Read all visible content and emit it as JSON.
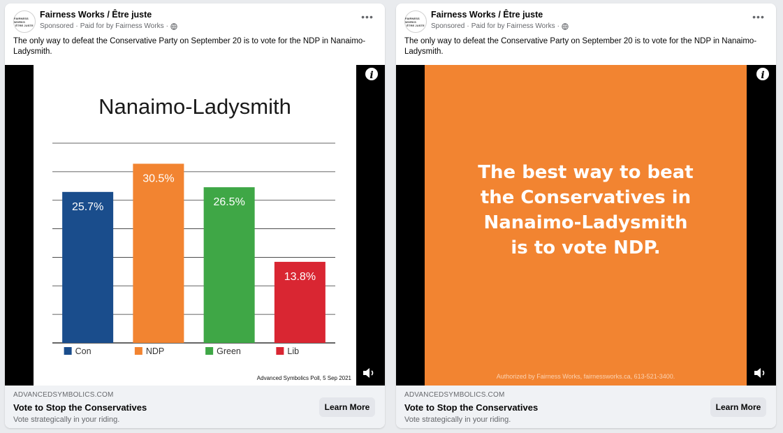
{
  "posts": [
    {
      "page_name": "Fairness Works / Être juste",
      "sponsored": "Sponsored",
      "paid_for": "Paid for by Fairness Works",
      "avatar_text": [
        "FAIRNESS WORKS",
        "ÊTRE JUSTE"
      ],
      "text": "The only way to defeat the Conservative Party on September 20 is to vote for the NDP in Nanaimo-Ladysmith.",
      "info_icon": "info-icon",
      "more_icon": "more-horizontal-icon",
      "audio_icon": "speaker-icon",
      "domain": "ADVANCEDSYMBOLICS.COM",
      "headline": "Vote to Stop the Conservatives",
      "description": "Vote strategically in your riding.",
      "cta": "Learn More"
    },
    {
      "page_name": "Fairness Works / Être juste",
      "sponsored": "Sponsored",
      "paid_for": "Paid for by Fairness Works",
      "avatar_text": [
        "FAIRNESS WORKS",
        "ÊTRE JUSTE"
      ],
      "text": "The only way to defeat the Conservative Party on September 20 is to vote for the NDP in Nanaimo-Ladysmith.",
      "info_icon": "info-icon",
      "more_icon": "more-horizontal-icon",
      "audio_icon": "speaker-icon",
      "domain": "ADVANCEDSYMBOLICS.COM",
      "headline": "Vote to Stop the Conservatives",
      "description": "Vote strategically in your riding.",
      "cta": "Learn More"
    }
  ],
  "slide2": {
    "message_lines": [
      "The best way to beat",
      "the Conservatives in",
      "Nanaimo-Ladysmith",
      "is to vote NDP."
    ],
    "authorized": "Authorized by Fairness Works, fairnessworks.ca, 613-521-3400."
  },
  "chart_data": {
    "type": "bar",
    "title": "Nanaimo-Ladysmith",
    "categories": [
      "Con",
      "NDP",
      "Green",
      "Lib"
    ],
    "values": [
      25.7,
      30.5,
      26.5,
      13.8
    ],
    "value_labels": [
      "25.7%",
      "30.5%",
      "26.5%",
      "13.8%"
    ],
    "colors": [
      "#1a4d8c",
      "#f28431",
      "#3fa746",
      "#d92632"
    ],
    "ylim": [
      0,
      34
    ],
    "grid": true,
    "legend": "bottom",
    "source": "Advanced Symbolics Poll, 5 Sep 2021",
    "xlabel": "",
    "ylabel": ""
  },
  "colors": {
    "orange_bg": "#f28431",
    "footer_bg": "#f0f2f5",
    "button_bg": "#e4e6eb"
  }
}
